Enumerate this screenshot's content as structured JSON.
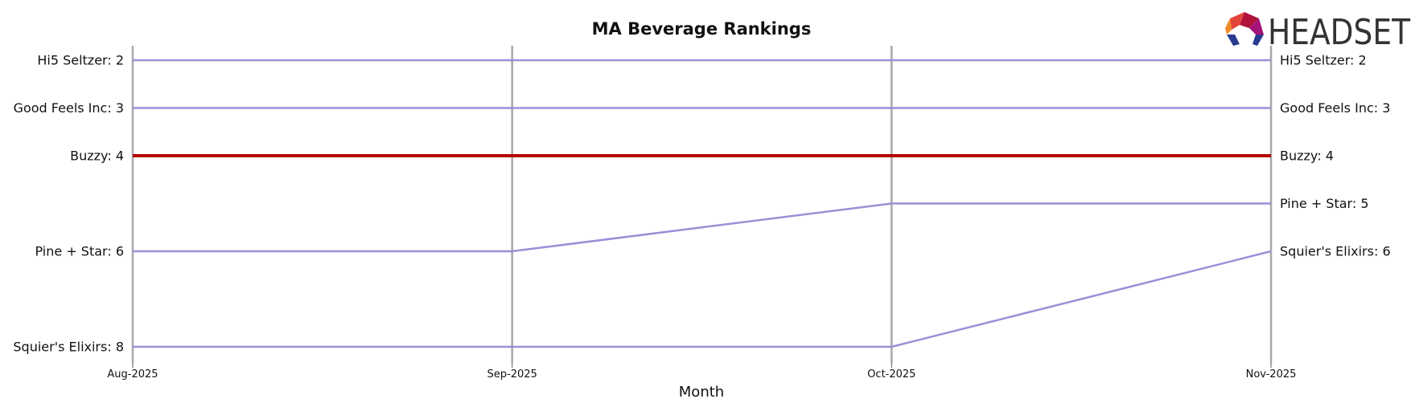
{
  "chart_data": {
    "type": "line",
    "title": "MA Beverage Rankings",
    "xlabel": "Month",
    "ylabel": "",
    "x": [
      "Aug-2025",
      "Sep-2025",
      "Oct-2025",
      "Nov-2025"
    ],
    "ylim": [
      8,
      2
    ],
    "y_inverted": true,
    "grid": "vertical lines at each month",
    "legend": "none; series labeled at both ends",
    "series": [
      {
        "name": "Hi5 Seltzer",
        "values": [
          2,
          2,
          2,
          2
        ],
        "highlight": false
      },
      {
        "name": "Good Feels Inc",
        "values": [
          3,
          3,
          3,
          3
        ],
        "highlight": false
      },
      {
        "name": "Buzzy",
        "values": [
          4,
          4,
          4,
          4
        ],
        "highlight": true
      },
      {
        "name": "Pine + Star",
        "values": [
          6,
          6,
          5,
          5
        ],
        "highlight": false
      },
      {
        "name": "Squier's Elixirs",
        "values": [
          8,
          8,
          8,
          6
        ],
        "highlight": false
      }
    ],
    "left_labels": [
      "Hi5 Seltzer: 2",
      "Good Feels Inc: 3",
      "Buzzy: 4",
      "Pine + Star: 6",
      "Squier's Elixirs: 8"
    ],
    "right_labels": [
      "Hi5 Seltzer: 2",
      "Good Feels Inc: 3",
      "Buzzy: 4",
      "Pine + Star: 5",
      "Squier's Elixirs: 6"
    ]
  },
  "logo": {
    "text": "HEADSET"
  },
  "colors": {
    "line": "#9b8fd8",
    "highlight": "#b30000",
    "grid": "#a8a8a8",
    "text": "#111111",
    "logo_text": "#333333"
  }
}
